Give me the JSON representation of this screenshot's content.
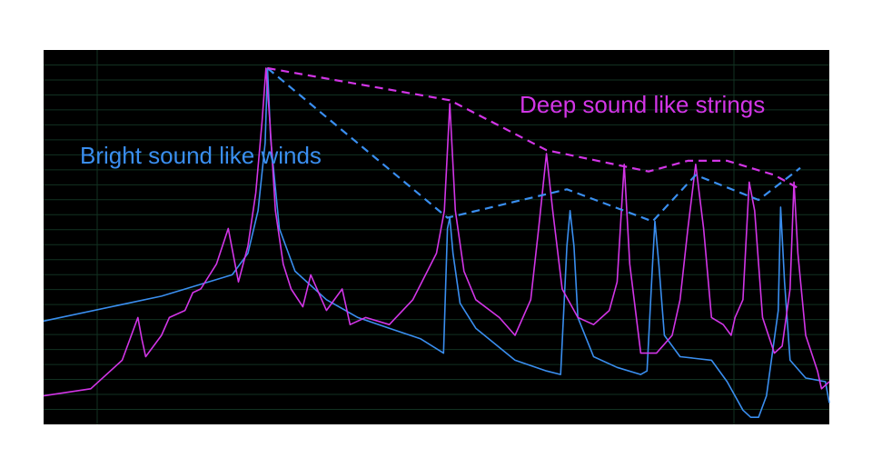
{
  "chart_data": {
    "type": "line",
    "title": "",
    "xlabel": "",
    "ylabel": "",
    "grid": true,
    "xlim": [
      0,
      100
    ],
    "ylim": [
      0,
      100
    ],
    "annotations": [
      {
        "text": "Bright sound like winds",
        "color": "#3a8eef"
      },
      {
        "text": "Deep sound like strings",
        "color": "#d235e6"
      }
    ],
    "series": [
      {
        "color": "#3a8eef",
        "points": [
          [
            0,
            29
          ],
          [
            15,
            36
          ],
          [
            24,
            42
          ],
          [
            26,
            48
          ],
          [
            27.3,
            60
          ],
          [
            28.2,
            79
          ],
          [
            28.5,
            100
          ],
          [
            28.9,
            80
          ],
          [
            30,
            55
          ],
          [
            32,
            43
          ],
          [
            36,
            35
          ],
          [
            40,
            30
          ],
          [
            44,
            27
          ],
          [
            48,
            24
          ],
          [
            50.9,
            20
          ],
          [
            51.4,
            55
          ],
          [
            51.7,
            58
          ],
          [
            52.1,
            48
          ],
          [
            53,
            34
          ],
          [
            55,
            27
          ],
          [
            60,
            18
          ],
          [
            64,
            15
          ],
          [
            65.8,
            14
          ],
          [
            66.6,
            50
          ],
          [
            67,
            60
          ],
          [
            67.5,
            50
          ],
          [
            68,
            30
          ],
          [
            70,
            19
          ],
          [
            73,
            16
          ],
          [
            76,
            14
          ],
          [
            76.8,
            15
          ],
          [
            77.5,
            45
          ],
          [
            77.8,
            57
          ],
          [
            78.3,
            45
          ],
          [
            79,
            25
          ],
          [
            81,
            19
          ],
          [
            85,
            18
          ],
          [
            87,
            12
          ],
          [
            89,
            4
          ],
          [
            90,
            2
          ],
          [
            91,
            2
          ],
          [
            92,
            8
          ],
          [
            93.5,
            32
          ],
          [
            93.8,
            61
          ],
          [
            94.3,
            40
          ],
          [
            95,
            18
          ],
          [
            97,
            13
          ],
          [
            99.5,
            12
          ],
          [
            100,
            6
          ]
        ]
      },
      {
        "color": "#d235e6",
        "points": [
          [
            0,
            8
          ],
          [
            6,
            10
          ],
          [
            10,
            18
          ],
          [
            12,
            30
          ],
          [
            12.5,
            24
          ],
          [
            13,
            19
          ],
          [
            15,
            25
          ],
          [
            16,
            30
          ],
          [
            18,
            32
          ],
          [
            19,
            37
          ],
          [
            20,
            38
          ],
          [
            22,
            45
          ],
          [
            23.5,
            55
          ],
          [
            24.8,
            40
          ],
          [
            26,
            50
          ],
          [
            27,
            65
          ],
          [
            27.8,
            85
          ],
          [
            28.3,
            100
          ],
          [
            28.8,
            85
          ],
          [
            29.5,
            60
          ],
          [
            30.5,
            45
          ],
          [
            31.5,
            38
          ],
          [
            33,
            33
          ],
          [
            34,
            42
          ],
          [
            36,
            32
          ],
          [
            38,
            38
          ],
          [
            39,
            28
          ],
          [
            41,
            30
          ],
          [
            44,
            28
          ],
          [
            47,
            35
          ],
          [
            50,
            48
          ],
          [
            51,
            60
          ],
          [
            51.7,
            90
          ],
          [
            52.4,
            60
          ],
          [
            53.5,
            43
          ],
          [
            55,
            35
          ],
          [
            58,
            30
          ],
          [
            60,
            25
          ],
          [
            62,
            35
          ],
          [
            63,
            55
          ],
          [
            64,
            76
          ],
          [
            64.8,
            60
          ],
          [
            66,
            38
          ],
          [
            68,
            30
          ],
          [
            70,
            28
          ],
          [
            72,
            32
          ],
          [
            73,
            40
          ],
          [
            73.9,
            73
          ],
          [
            74.6,
            45
          ],
          [
            76,
            20
          ],
          [
            78,
            20
          ],
          [
            80,
            25
          ],
          [
            81,
            35
          ],
          [
            82,
            55
          ],
          [
            83,
            73
          ],
          [
            84,
            55
          ],
          [
            85,
            30
          ],
          [
            86.5,
            28
          ],
          [
            87.5,
            25
          ],
          [
            88,
            30
          ],
          [
            89,
            35
          ],
          [
            89.8,
            68
          ],
          [
            90.5,
            60
          ],
          [
            91.5,
            30
          ],
          [
            93,
            20
          ],
          [
            94,
            22
          ],
          [
            95,
            38
          ],
          [
            95.5,
            68
          ],
          [
            96,
            48
          ],
          [
            97,
            25
          ],
          [
            98.5,
            15
          ],
          [
            99,
            10
          ],
          [
            100,
            12
          ]
        ]
      },
      {
        "color": "#3a8eef",
        "dashed": true,
        "points": [
          [
            28.5,
            100
          ],
          [
            51.4,
            58
          ],
          [
            66.6,
            66
          ],
          [
            77.5,
            57
          ],
          [
            83,
            70
          ],
          [
            91,
            63
          ],
          [
            96.3,
            72
          ]
        ]
      },
      {
        "color": "#d235e6",
        "dashed": true,
        "points": [
          [
            28.5,
            100
          ],
          [
            51.7,
            91
          ],
          [
            64,
            77
          ],
          [
            77,
            71
          ],
          [
            82,
            74
          ],
          [
            87,
            74
          ],
          [
            93,
            70
          ],
          [
            96.3,
            66
          ]
        ]
      }
    ]
  }
}
